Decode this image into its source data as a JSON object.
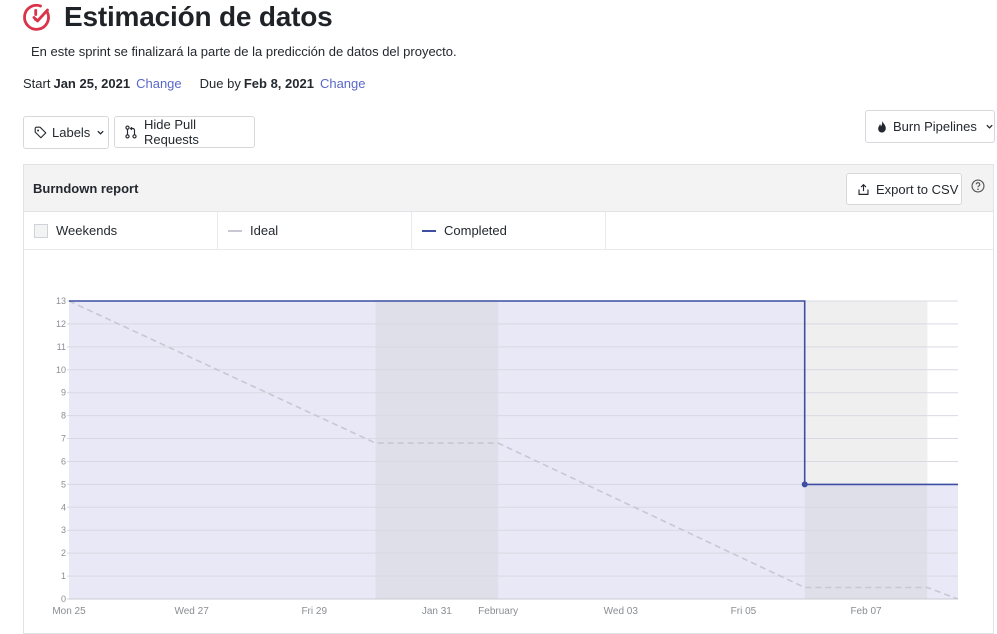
{
  "page": {
    "title": "Estimación de datos",
    "description": "En este sprint se finalizará la parte de la predicción de datos del proyecto.",
    "start_label": "Start",
    "start_date": "Jan 25, 2021",
    "start_change": "Change",
    "due_label": "Due by",
    "due_date": "Feb 8, 2021",
    "due_change": "Change"
  },
  "toolbar": {
    "labels_button": "Labels",
    "hide_pr_button": "Hide Pull Requests",
    "burn_button": "Burn Pipelines"
  },
  "report": {
    "title": "Burndown report",
    "export_button": "Export to CSV",
    "legend": {
      "weekends": "Weekends",
      "ideal": "Ideal",
      "completed": "Completed"
    }
  },
  "colors": {
    "accent": "#3d4ea3",
    "ideal": "#c7c8d4",
    "plot_fill": "#e8e8f6",
    "weekend_fill": "#dfdfe9",
    "after_fill": "#efefef",
    "brand_icon": "#d9344a"
  },
  "chart_data": {
    "type": "line",
    "title": "Burndown report",
    "x_ticks": [
      "Mon 25",
      "Wed 27",
      "Fri 29",
      "Jan 31",
      "February",
      "Wed 03",
      "Fri 05",
      "Feb 07"
    ],
    "y_ticks": [
      "0",
      "1",
      "2",
      "3",
      "4",
      "5",
      "6",
      "7",
      "8",
      "9",
      "10",
      "11",
      "12",
      "13"
    ],
    "ylim": [
      0,
      13
    ],
    "x_range_days": [
      0,
      14.5
    ],
    "weekends": [
      [
        5,
        7
      ],
      [
        12,
        14
      ]
    ],
    "series": [
      {
        "name": "Ideal",
        "style": "dashed",
        "points": [
          [
            0,
            13
          ],
          [
            5,
            6.8
          ],
          [
            7,
            6.8
          ],
          [
            12,
            0.5
          ],
          [
            14,
            0.5
          ],
          [
            14.5,
            0
          ]
        ]
      },
      {
        "name": "Completed",
        "style": "step",
        "points": [
          [
            0,
            13
          ],
          [
            12,
            13
          ],
          [
            12,
            5
          ],
          [
            14.5,
            5
          ]
        ],
        "markers": [
          [
            12,
            5
          ]
        ]
      }
    ],
    "grid": true,
    "legend": "top"
  }
}
